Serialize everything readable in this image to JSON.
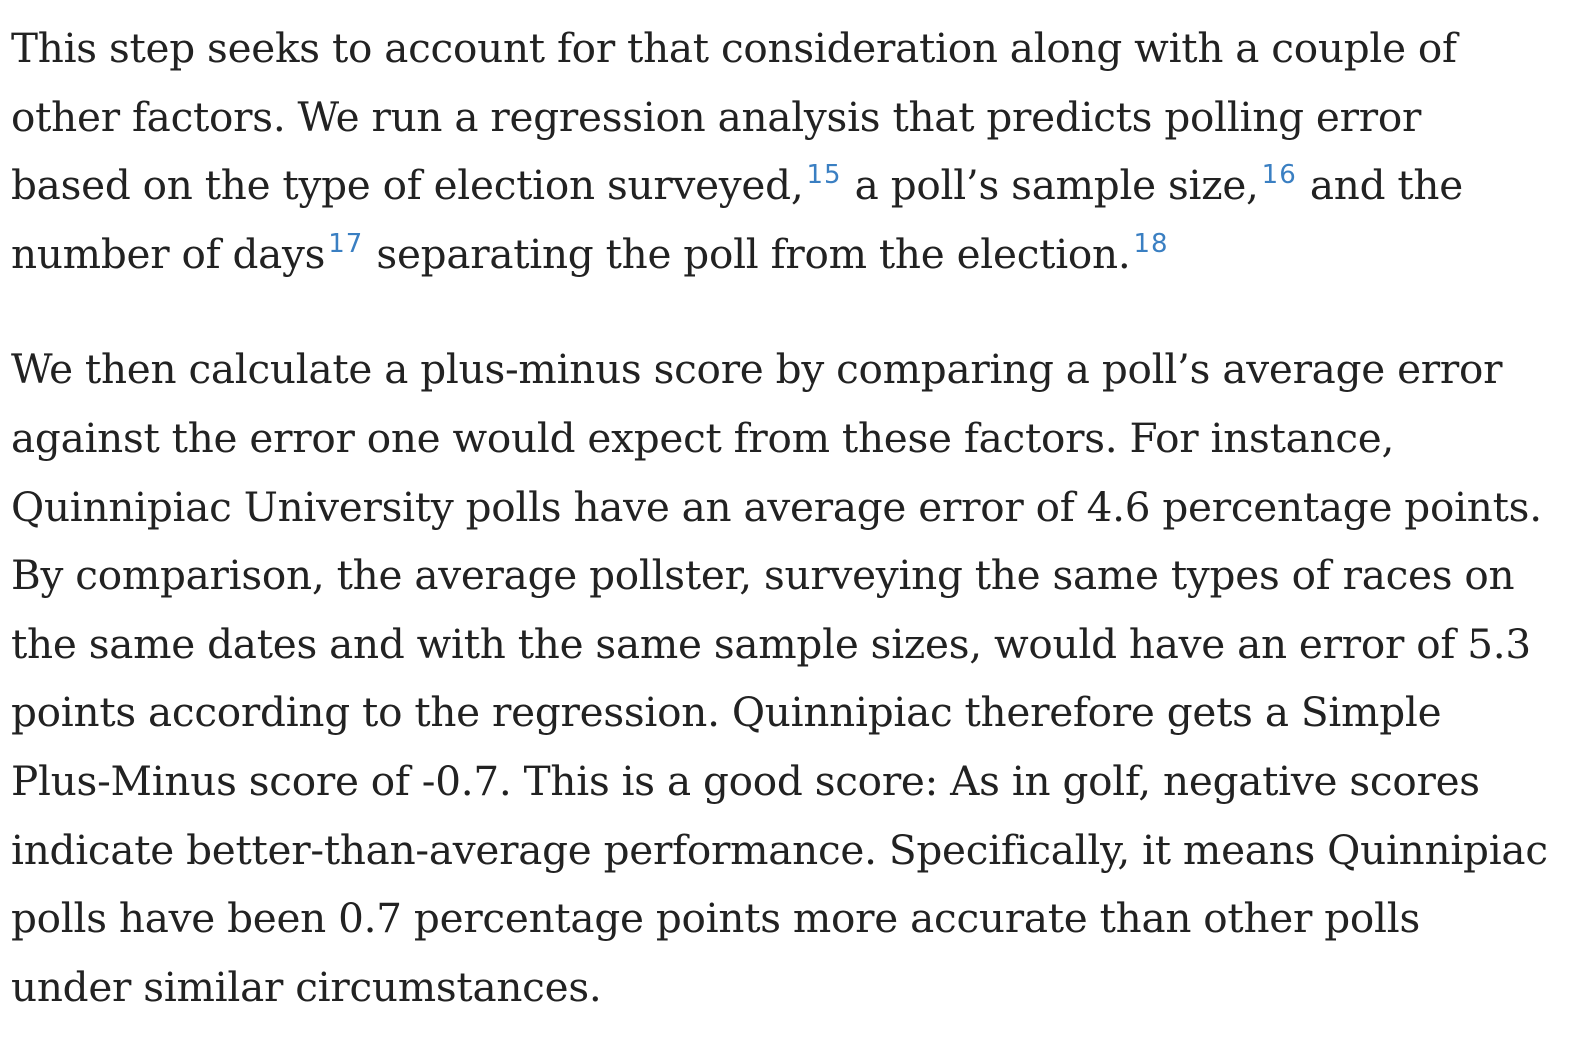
{
  "paragraph_1": {
    "seg_1": "This step seeks to account for that consideration along with a couple of other factors. We run a regression analysis that predicts polling error based on the type of election surveyed,",
    "footnote_1": "15",
    "seg_2": " a poll’s sample size,",
    "footnote_2": "16",
    "seg_3": " and the number of days",
    "footnote_3": "17",
    "seg_4": " separating the poll from the election.",
    "footnote_4": "18"
  },
  "paragraph_2": {
    "text": "We then calculate a plus-minus score by comparing a poll’s average error against the error one would expect from these factors. For instance, Quinnipiac University polls have an average error of 4.6 percentage points. By comparison, the average pollster, surveying the same types of races on the same dates and with the same sample sizes, would have an error of 5.3 points according to the regression. Quinnipiac therefore gets a Simple Plus-Minus score of -0.7. This is a good score: As in golf, negative scores indicate better-than-average performance. Specifically, it means Quinnipiac polls have been 0.7 percentage points more accurate than other polls under similar circumstances."
  },
  "colors": {
    "text": "#222222",
    "footnote_link": "#3a7fc2",
    "background": "#ffffff"
  }
}
